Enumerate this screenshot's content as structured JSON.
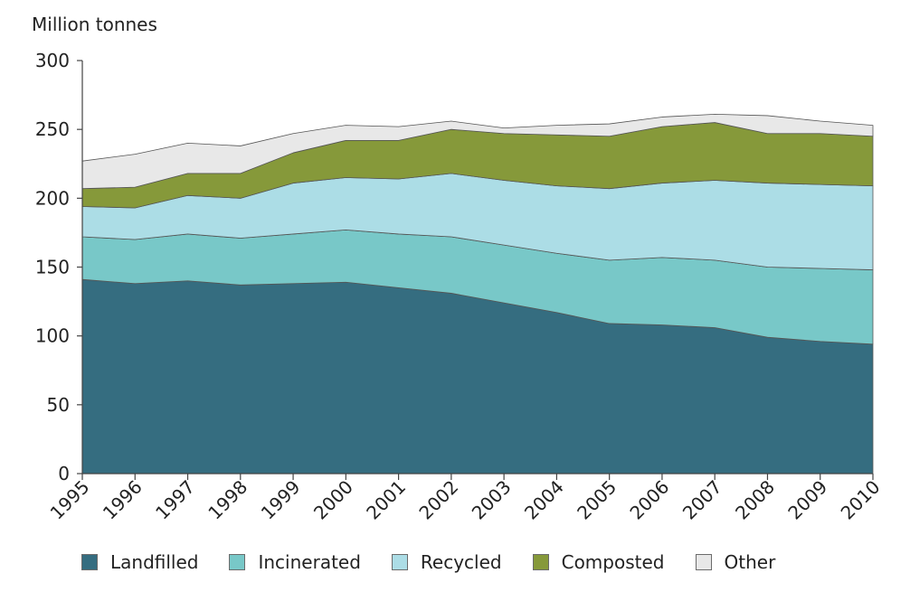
{
  "chart_data": {
    "type": "area",
    "stacked": true,
    "ylabel": "Million tonnes",
    "xlabel": "",
    "x": [
      "1995",
      "1996",
      "1997",
      "1998",
      "1999",
      "2000",
      "2001",
      "2002",
      "2003",
      "2004",
      "2005",
      "2006",
      "2007",
      "2008",
      "2009",
      "2010"
    ],
    "ylim": [
      0,
      300
    ],
    "yticks": [
      0,
      50,
      100,
      150,
      200,
      250,
      300
    ],
    "grid": false,
    "legend_position": "bottom",
    "series": [
      {
        "name": "Landfilled",
        "color": "#356d80",
        "values": [
          141,
          138,
          140,
          137,
          138,
          139,
          135,
          131,
          124,
          117,
          109,
          108,
          106,
          99,
          96,
          94
        ]
      },
      {
        "name": "Incinerated",
        "color": "#78c8c8",
        "values": [
          31,
          32,
          34,
          34,
          36,
          38,
          39,
          41,
          42,
          43,
          46,
          49,
          49,
          51,
          53,
          54
        ]
      },
      {
        "name": "Recycled",
        "color": "#acdde6",
        "values": [
          22,
          23,
          28,
          29,
          37,
          38,
          40,
          46,
          47,
          49,
          52,
          54,
          58,
          61,
          61,
          61
        ]
      },
      {
        "name": "Composted",
        "color": "#86993a",
        "values": [
          13,
          15,
          16,
          18,
          22,
          27,
          28,
          32,
          34,
          37,
          38,
          41,
          42,
          36,
          37,
          36
        ]
      },
      {
        "name": "Other",
        "color": "#e8e8e8",
        "values": [
          20,
          24,
          22,
          20,
          14,
          11,
          10,
          6,
          4,
          7,
          9,
          7,
          6,
          13,
          9,
          8
        ]
      }
    ]
  }
}
